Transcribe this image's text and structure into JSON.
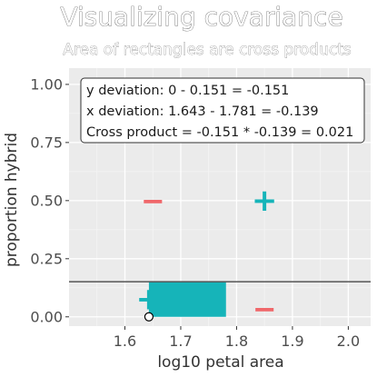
{
  "chart_data": {
    "type": "scatter",
    "title": "Visualizing covariance",
    "subtitle": "Area of rectangles are cross products",
    "xlabel": "log10 petal area",
    "ylabel": "proportion hybrid",
    "xlim": [
      1.5,
      2.04
    ],
    "ylim": [
      -0.04,
      1.07
    ],
    "x_ticks": [
      1.6,
      1.7,
      1.8,
      1.9,
      2.0
    ],
    "x_tick_labels": [
      "1.6",
      "1.7",
      "1.8",
      "1.9",
      "2.0"
    ],
    "y_ticks": [
      0.0,
      0.25,
      0.5,
      0.75,
      1.0
    ],
    "y_tick_labels": [
      "0.00",
      "0.25",
      "0.50",
      "0.75",
      "1.00"
    ],
    "grid": true,
    "mean_x": 1.781,
    "mean_y": 0.151,
    "point": {
      "x": 1.643,
      "y": 0.0
    },
    "rectangle": {
      "x0": 1.643,
      "x1": 1.781,
      "y0": 0.0,
      "y1": 0.151,
      "color": "#16b4b9"
    },
    "quadrant_signs": [
      {
        "sign": "−",
        "x": 1.65,
        "y": 0.5,
        "color": "#f0676a"
      },
      {
        "sign": "+",
        "x": 1.85,
        "y": 0.5,
        "color": "#16b4b9"
      },
      {
        "sign": "+",
        "x": 1.643,
        "y": 0.075,
        "color": "#16b4b9"
      },
      {
        "sign": "−",
        "x": 1.85,
        "y": 0.035,
        "color": "#f0676a"
      }
    ],
    "annotation_lines": [
      "y deviation: 0 - 0.151 = -0.151",
      "x deviation: 1.643 - 1.781 = -0.139",
      "Cross product = -0.151 * -0.139 = 0.021"
    ],
    "colors": {
      "panel": "#ebebeb",
      "grid_major": "#ffffff",
      "grid_minor": "#f4f4f4",
      "mean_line": "#555555",
      "positive": "#16b4b9",
      "negative": "#f0676a"
    }
  }
}
